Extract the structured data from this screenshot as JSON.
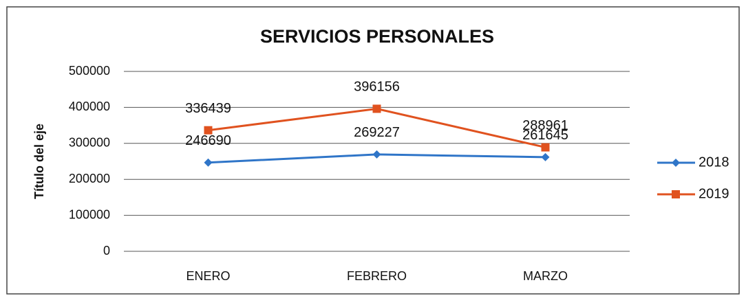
{
  "chart_data": {
    "type": "line",
    "title": "SERVICIOS PERSONALES",
    "y_label": "Título del eje",
    "categories": [
      "ENERO",
      "FEBRERO",
      "MARZO"
    ],
    "series": [
      {
        "name": "2018",
        "color": "#2f75c8",
        "marker": "diamond",
        "values": [
          246690,
          269227,
          261645
        ]
      },
      {
        "name": "2019",
        "color": "#e0521f",
        "marker": "square",
        "values": [
          336439,
          396156,
          288961
        ]
      }
    ],
    "ylim": [
      0,
      500000
    ],
    "yticks": [
      0,
      100000,
      200000,
      300000,
      400000,
      500000
    ],
    "grid": true,
    "legend": "right"
  }
}
